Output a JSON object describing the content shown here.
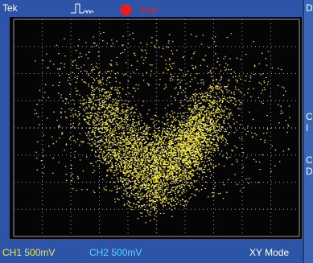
{
  "header": {
    "brand": "Tek",
    "status": "Stop"
  },
  "footer": {
    "ch1": "CH1 500mV",
    "ch2": "CH2 500mV",
    "mode": "XY Mode"
  },
  "side_panel": [
    "D",
    "C",
    "I",
    "C",
    "D"
  ]
}
